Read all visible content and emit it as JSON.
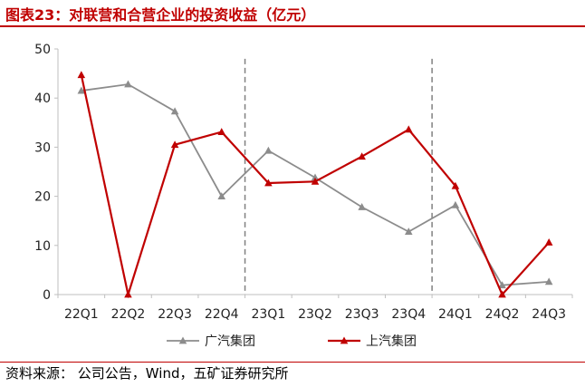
{
  "figure": {
    "title": "图表23：对联营和合营企业的投资收益（亿元）",
    "source": "资料来源： 公司公告，Wind，五矿证券研究所"
  },
  "chart_data": {
    "type": "line",
    "categories": [
      "22Q1",
      "22Q2",
      "22Q3",
      "22Q4",
      "23Q1",
      "23Q2",
      "23Q3",
      "23Q4",
      "24Q1",
      "24Q2",
      "24Q3"
    ],
    "ylim": [
      0,
      50
    ],
    "yticks": [
      0,
      10,
      20,
      30,
      40,
      50
    ],
    "grid": false,
    "legend": "bottom",
    "dashed_separators_after": [
      "22Q4",
      "23Q4"
    ],
    "series": [
      {
        "name": "广汽集团",
        "color": "#8c8c8c",
        "marker": "triangle",
        "values": [
          41.5,
          42.8,
          37.3,
          20.0,
          29.3,
          23.8,
          17.8,
          12.8,
          18.2,
          1.9,
          2.6
        ]
      },
      {
        "name": "上汽集团",
        "color": "#c00000",
        "marker": "triangle",
        "values": [
          44.7,
          0.0,
          30.5,
          33.1,
          22.7,
          23.0,
          28.1,
          33.6,
          22.1,
          0.0,
          10.6
        ]
      }
    ]
  }
}
